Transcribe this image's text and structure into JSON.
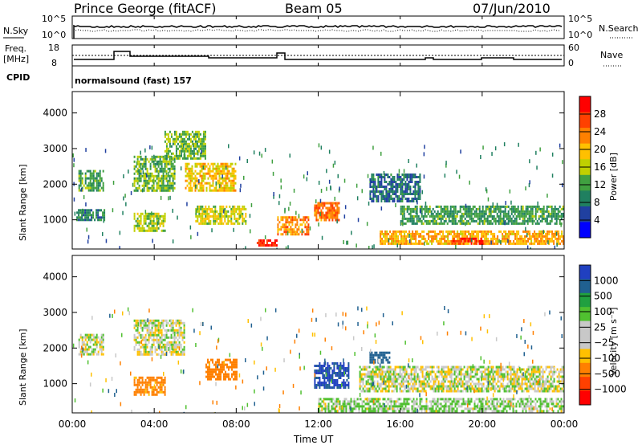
{
  "header": {
    "station": "Prince George (fitACF)",
    "beam": "Beam 05",
    "date": "07/Jun/2010"
  },
  "params": {
    "nsky_label": "N.Sky",
    "nsearch_label": "N.Search",
    "freq_label_1": "Freq.",
    "freq_label_2": "[MHz]",
    "nave_label": "Nave",
    "cpid_label": "CPID",
    "cpid_value": "normalsound (fast) 157",
    "nsky_ticks": [
      "10^5",
      "10^0"
    ],
    "nsearch_ticks": [
      "10^5",
      "10^0"
    ],
    "freq_ticks": [
      "18",
      "8"
    ],
    "nave_ticks": [
      "60",
      "0"
    ]
  },
  "power_colorbar": {
    "label": "Power [dB]",
    "ticks": [
      "28",
      "24",
      "20",
      "16",
      "12",
      "8",
      "4"
    ],
    "colors": [
      "#ff0000",
      "#ff4000",
      "#ff8000",
      "#ffc000",
      "#c0d000",
      "#40a040",
      "#208060",
      "#2040a0",
      "#0000ff"
    ]
  },
  "velocity_colorbar": {
    "label": "Velocity [m s⁻¹]",
    "ticks": [
      "1000",
      "500",
      "100",
      "25",
      "−25",
      "−100",
      "−500",
      "−1000"
    ],
    "colors": [
      "#2040c0",
      "#206090",
      "#20a040",
      "#50c030",
      "#c8c8c8",
      "#c8c8c8",
      "#ffc000",
      "#ff8000",
      "#ff4000",
      "#ff0000"
    ]
  },
  "axes": {
    "ylabel": "Slant Range [km]",
    "xlabel": "Time UT",
    "y_ticks": [
      "1000",
      "2000",
      "3000",
      "4000"
    ],
    "x_ticks": [
      "00:00",
      "04:00",
      "08:00",
      "12:00",
      "16:00",
      "20:00",
      "00:00"
    ]
  },
  "chart_data": [
    {
      "type": "heatmap",
      "title": "Power",
      "xlabel": "",
      "ylabel": "Slant Range [km]",
      "x_range_hours": [
        0,
        24
      ],
      "ylim": [
        180,
        4600
      ],
      "colorbar": "Power [dB]",
      "colorbar_range": [
        0,
        30
      ],
      "features": [
        {
          "start_h": 0.2,
          "end_h": 1.6,
          "range_lo": 1000,
          "range_hi": 1300,
          "value": 8
        },
        {
          "start_h": 0.3,
          "end_h": 1.5,
          "range_lo": 1800,
          "range_hi": 2400,
          "value": 10
        },
        {
          "start_h": 3.0,
          "end_h": 4.5,
          "range_lo": 700,
          "range_hi": 1200,
          "value": 14
        },
        {
          "start_h": 3.0,
          "end_h": 5.0,
          "range_lo": 1800,
          "range_hi": 2800,
          "value": 12
        },
        {
          "start_h": 4.5,
          "end_h": 6.5,
          "range_lo": 2700,
          "range_hi": 3500,
          "value": 12
        },
        {
          "start_h": 5.5,
          "end_h": 8.0,
          "range_lo": 1800,
          "range_hi": 2600,
          "value": 18
        },
        {
          "start_h": 6.0,
          "end_h": 8.5,
          "range_lo": 900,
          "range_hi": 1400,
          "value": 16
        },
        {
          "start_h": 9.0,
          "end_h": 10.0,
          "range_lo": 250,
          "range_hi": 450,
          "value": 28
        },
        {
          "start_h": 10.0,
          "end_h": 11.5,
          "range_lo": 600,
          "range_hi": 1100,
          "value": 22
        },
        {
          "start_h": 11.8,
          "end_h": 13.0,
          "range_lo": 1000,
          "range_hi": 1500,
          "value": 24
        },
        {
          "start_h": 14.5,
          "end_h": 17.0,
          "range_lo": 1500,
          "range_hi": 2300,
          "value": 6
        },
        {
          "start_h": 15.0,
          "end_h": 24.0,
          "range_lo": 300,
          "range_hi": 700,
          "value": 20
        },
        {
          "start_h": 16.0,
          "end_h": 24.0,
          "range_lo": 900,
          "range_hi": 1400,
          "value": 10
        },
        {
          "start_h": 18.5,
          "end_h": 20.0,
          "range_lo": 350,
          "range_hi": 500,
          "value": 28
        }
      ]
    },
    {
      "type": "heatmap",
      "title": "Velocity",
      "xlabel": "Time UT",
      "ylabel": "Slant Range [km]",
      "x_range_hours": [
        0,
        24
      ],
      "ylim": [
        180,
        4600
      ],
      "colorbar": "Velocity [m s⁻¹]",
      "colorbar_range": [
        -1000,
        1000
      ],
      "features": [
        {
          "start_h": 0.3,
          "end_h": 1.5,
          "range_lo": 1800,
          "range_hi": 2400,
          "value": 0
        },
        {
          "start_h": 3.0,
          "end_h": 4.5,
          "range_lo": 700,
          "range_hi": 1200,
          "value": -400
        },
        {
          "start_h": 3.0,
          "end_h": 5.5,
          "range_lo": 1800,
          "range_hi": 2800,
          "value": 0
        },
        {
          "start_h": 6.5,
          "end_h": 8.0,
          "range_lo": 1100,
          "range_hi": 1700,
          "value": -500
        },
        {
          "start_h": 11.8,
          "end_h": 13.5,
          "range_lo": 900,
          "range_hi": 1600,
          "value": 800
        },
        {
          "start_h": 14.5,
          "end_h": 15.5,
          "range_lo": 1600,
          "range_hi": 1900,
          "value": 600
        },
        {
          "start_h": 12.0,
          "end_h": 24.0,
          "range_lo": 250,
          "range_hi": 600,
          "value": 80
        },
        {
          "start_h": 14.0,
          "end_h": 24.0,
          "range_lo": 800,
          "range_hi": 1500,
          "value": 0
        }
      ]
    }
  ]
}
